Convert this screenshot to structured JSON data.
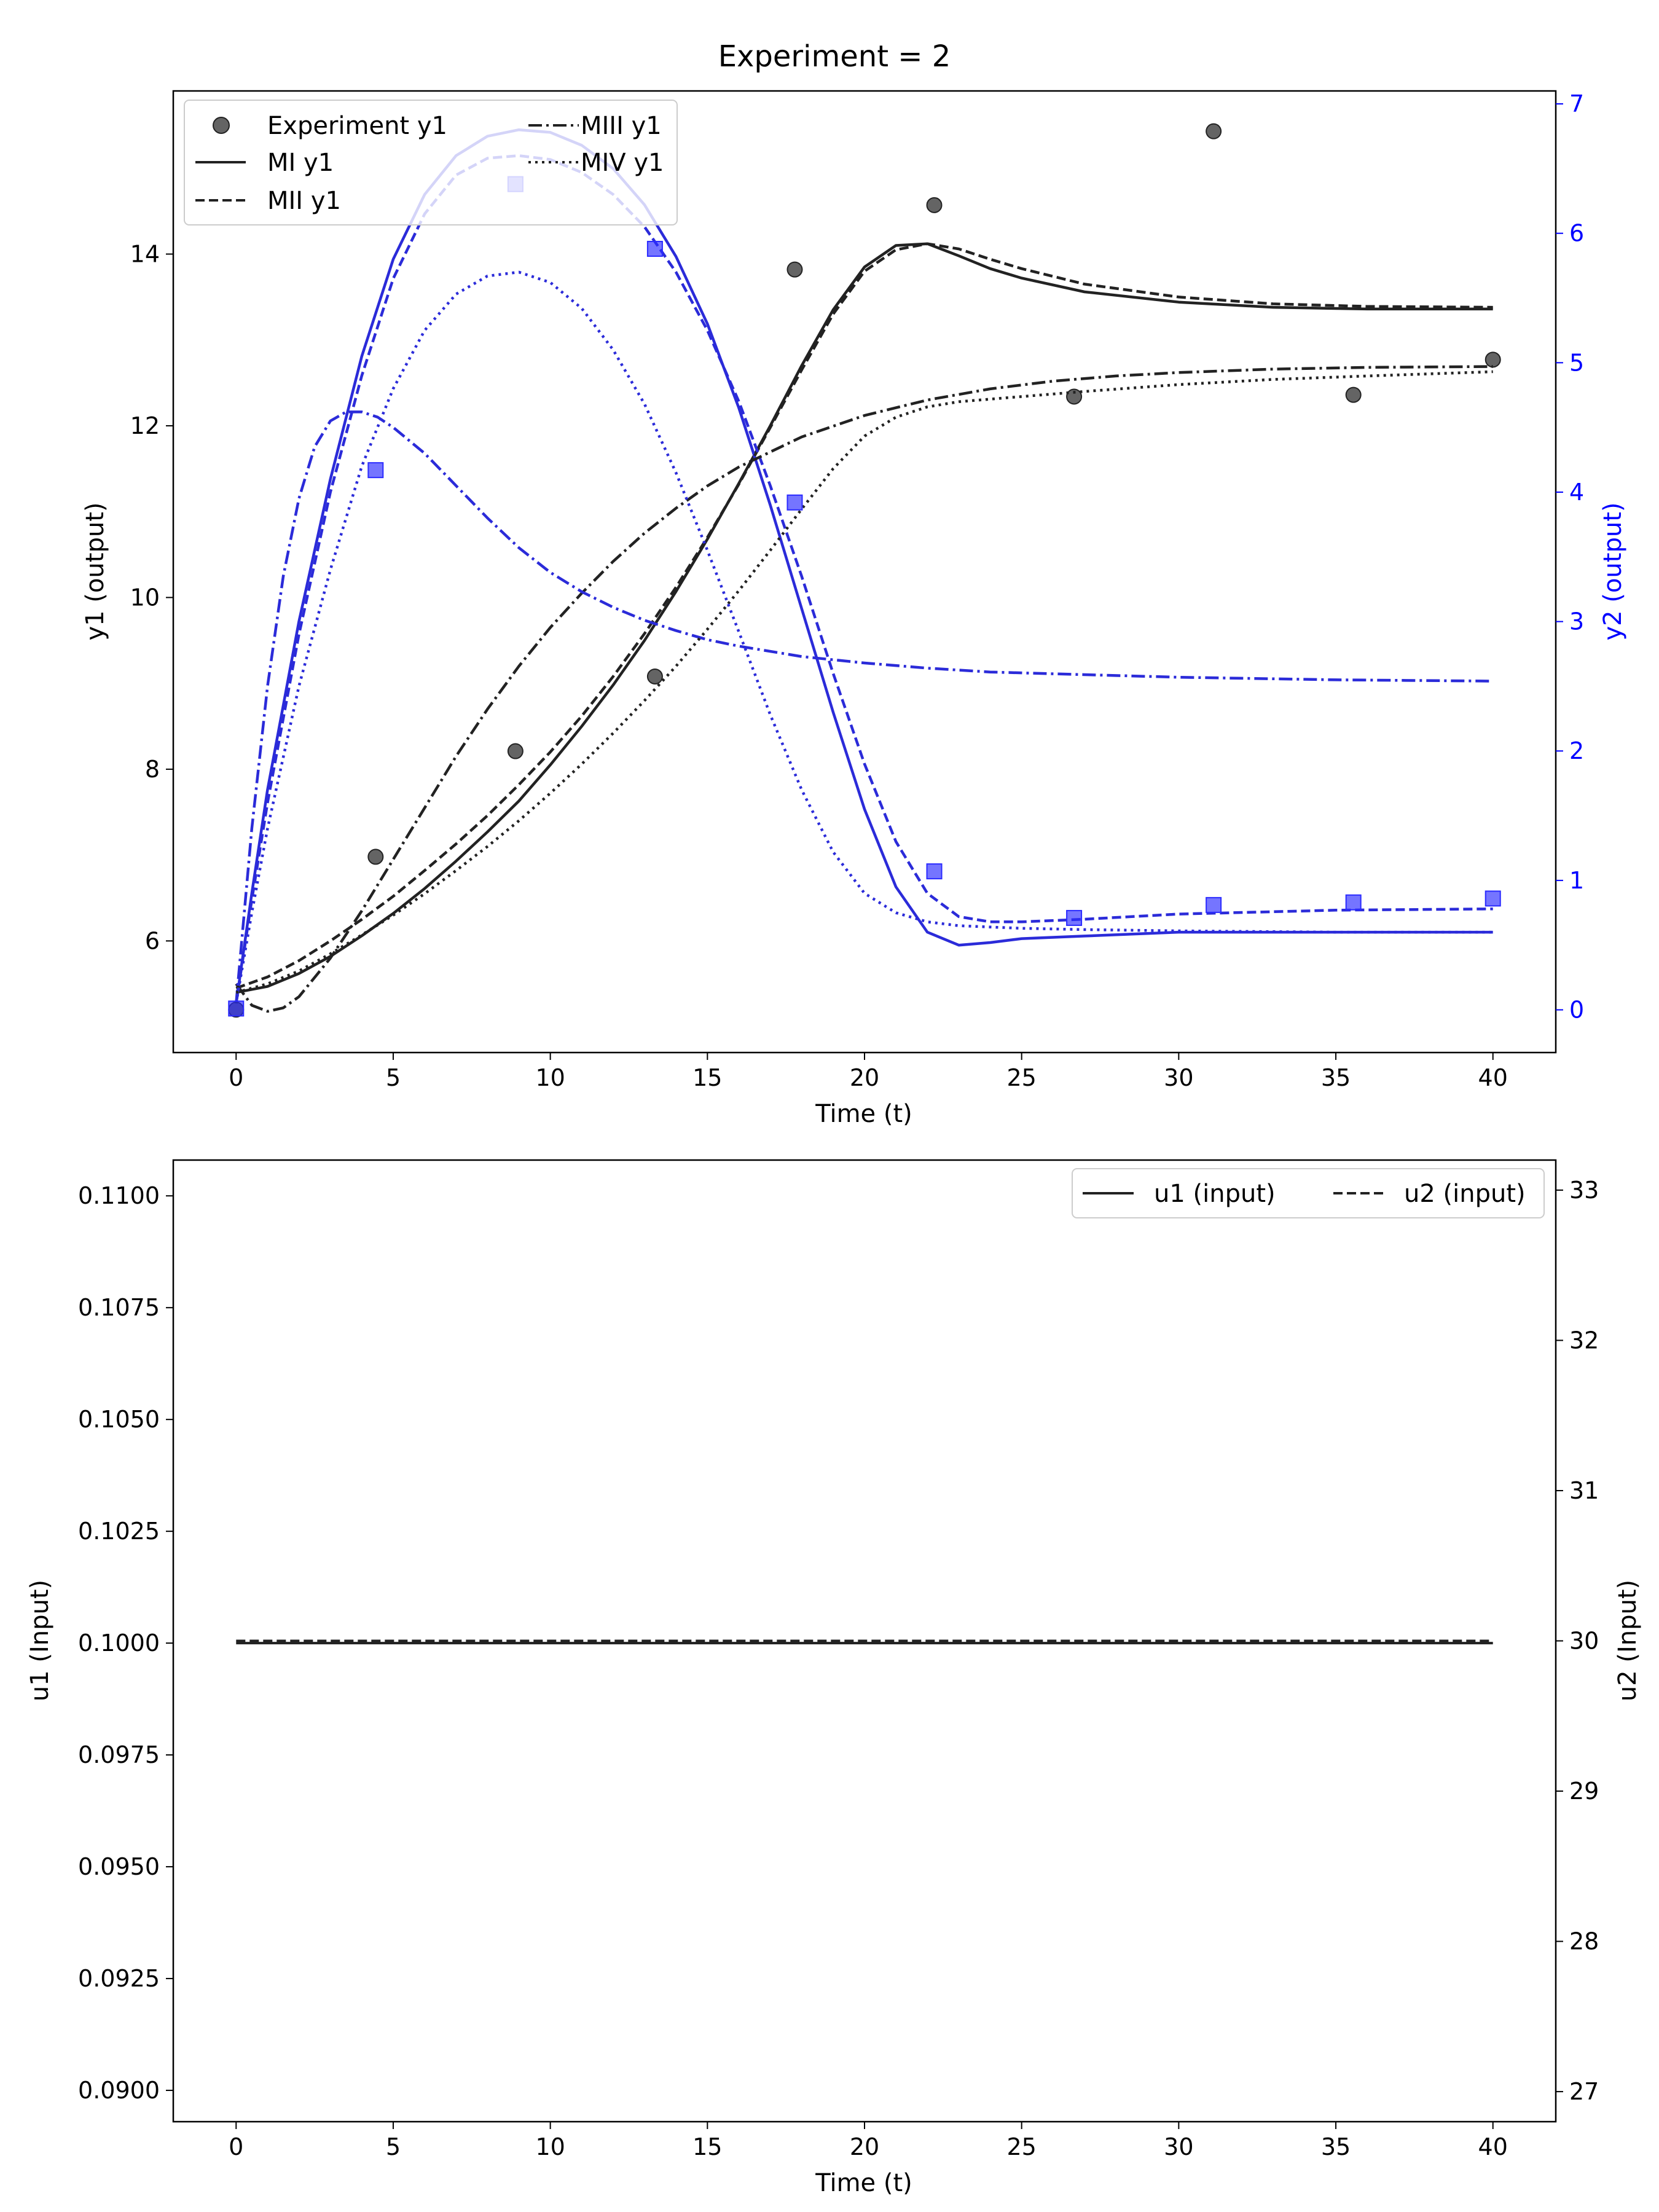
{
  "chart_data": [
    {
      "type": "line",
      "title": "Experiment = 2",
      "xlabel": "Time (t)",
      "ylabel_left": "y1 (output)",
      "ylabel_right": "y2 (output)",
      "xlim": [
        -2,
        42
      ],
      "ylim_left": [
        4.7,
        15.9
      ],
      "ylim_right": [
        -0.33,
        7.1
      ],
      "x_ticks": [
        0,
        5,
        10,
        15,
        20,
        25,
        30,
        35,
        40
      ],
      "x_tick_labels": [
        "0",
        "5",
        "10",
        "15",
        "20",
        "25",
        "30",
        "35",
        "40"
      ],
      "y_left_ticks": [
        6,
        8,
        10,
        12,
        14
      ],
      "y_left_tick_labels": [
        "6",
        "8",
        "10",
        "12",
        "14"
      ],
      "y_right_ticks": [
        0,
        1,
        2,
        3,
        4,
        5,
        6,
        7
      ],
      "y_right_tick_labels": [
        "0",
        "1",
        "2",
        "3",
        "4",
        "5",
        "6",
        "7"
      ],
      "colors": {
        "y1": "#222222",
        "y2": "#2b2bd9",
        "axis_right": "#0000ff"
      },
      "legend": {
        "placement": "upper-left",
        "columns": 2,
        "entries": [
          {
            "label": "Experiment y1",
            "style": "marker-circle"
          },
          {
            "label": "MI y1",
            "style": "solid"
          },
          {
            "label": "MII y1",
            "style": "dashed"
          },
          {
            "label": "MIII y1",
            "style": "dashdot"
          },
          {
            "label": "MIV y1",
            "style": "dotted"
          }
        ]
      },
      "experiment": {
        "x": [
          0,
          4.44,
          8.89,
          13.33,
          17.78,
          22.22,
          26.67,
          31.11,
          35.56,
          40
        ],
        "y1": [
          5.2,
          6.98,
          8.21,
          9.08,
          13.82,
          14.57,
          12.34,
          15.43,
          12.36,
          12.77
        ],
        "y2": [
          0.01,
          4.17,
          6.38,
          5.88,
          3.92,
          1.07,
          0.71,
          0.81,
          0.83,
          0.86
        ]
      },
      "models": [
        {
          "name": "MI",
          "style": "solid",
          "y1": {
            "t": [
              0,
              1,
              2,
              3,
              4,
              5,
              6,
              7,
              8,
              9,
              10,
              11,
              12,
              13,
              14,
              15,
              16,
              17,
              18,
              19,
              20,
              21,
              22,
              23,
              24,
              25,
              27,
              30,
              33,
              36,
              40
            ],
            "v": [
              5.4,
              5.47,
              5.62,
              5.82,
              6.06,
              6.32,
              6.61,
              6.93,
              7.27,
              7.63,
              8.05,
              8.5,
              8.98,
              9.5,
              10.07,
              10.68,
              11.33,
              12.0,
              12.7,
              13.35,
              13.85,
              14.1,
              14.12,
              13.98,
              13.83,
              13.72,
              13.56,
              13.44,
              13.38,
              13.36,
              13.36
            ]
          },
          "y2": {
            "t": [
              0,
              0.5,
              1,
              2,
              3,
              4,
              5,
              6,
              7,
              8,
              9,
              10,
              11,
              12,
              13,
              14,
              15,
              16,
              17,
              18,
              19,
              20,
              21,
              22,
              23,
              24,
              25,
              27,
              30,
              35,
              40
            ],
            "v": [
              0.05,
              0.9,
              1.7,
              3.0,
              4.1,
              5.05,
              5.8,
              6.3,
              6.6,
              6.75,
              6.8,
              6.78,
              6.68,
              6.5,
              6.22,
              5.82,
              5.3,
              4.65,
              3.9,
              3.1,
              2.3,
              1.55,
              0.95,
              0.6,
              0.5,
              0.52,
              0.55,
              0.57,
              0.6,
              0.6,
              0.6
            ]
          }
        },
        {
          "name": "MII",
          "style": "dashed",
          "y1": {
            "t": [
              0,
              1,
              2,
              3,
              4,
              5,
              6,
              7,
              8,
              9,
              10,
              11,
              12,
              13,
              14,
              15,
              16,
              17,
              18,
              19,
              20,
              21,
              22,
              23,
              24,
              25,
              27,
              30,
              33,
              36,
              40
            ],
            "v": [
              5.45,
              5.58,
              5.77,
              6.0,
              6.25,
              6.52,
              6.82,
              7.13,
              7.46,
              7.82,
              8.2,
              8.62,
              9.08,
              9.58,
              10.12,
              10.7,
              11.32,
              11.98,
              12.65,
              13.3,
              13.8,
              14.05,
              14.12,
              14.06,
              13.94,
              13.83,
              13.65,
              13.5,
              13.42,
              13.39,
              13.38
            ]
          },
          "y2": {
            "t": [
              0,
              0.5,
              1,
              2,
              3,
              4,
              5,
              6,
              7,
              8,
              9,
              10,
              11,
              12,
              13,
              14,
              15,
              16,
              17,
              18,
              19,
              20,
              21,
              22,
              23,
              24,
              25,
              27,
              30,
              35,
              40
            ],
            "v": [
              0.05,
              0.85,
              1.6,
              2.9,
              4.0,
              4.9,
              5.65,
              6.15,
              6.45,
              6.58,
              6.6,
              6.57,
              6.47,
              6.3,
              6.05,
              5.7,
              5.25,
              4.7,
              4.05,
              3.35,
              2.6,
              1.9,
              1.3,
              0.9,
              0.72,
              0.68,
              0.68,
              0.7,
              0.74,
              0.77,
              0.78
            ]
          }
        },
        {
          "name": "MIII",
          "style": "dashdot",
          "y1": {
            "t": [
              0,
              0.5,
              1,
              1.5,
              2,
              3,
              4,
              5,
              6,
              7,
              8,
              9,
              10,
              11,
              12,
              13,
              14,
              15,
              16,
              18,
              20,
              22,
              24,
              26,
              28,
              30,
              33,
              36,
              40
            ],
            "v": [
              5.5,
              5.25,
              5.18,
              5.22,
              5.35,
              5.8,
              6.35,
              6.95,
              7.55,
              8.15,
              8.7,
              9.2,
              9.65,
              10.05,
              10.42,
              10.75,
              11.04,
              11.3,
              11.52,
              11.87,
              12.12,
              12.3,
              12.43,
              12.52,
              12.58,
              12.62,
              12.66,
              12.68,
              12.69
            ]
          },
          "y2": {
            "t": [
              0,
              0.5,
              1,
              1.5,
              2,
              2.5,
              3,
              3.5,
              4,
              4.5,
              5,
              6,
              7,
              8,
              9,
              10,
              11,
              12,
              13,
              14,
              15,
              16,
              18,
              20,
              22,
              24,
              27,
              30,
              35,
              40
            ],
            "v": [
              0.05,
              1.4,
              2.5,
              3.35,
              3.95,
              4.35,
              4.55,
              4.62,
              4.62,
              4.58,
              4.5,
              4.3,
              4.05,
              3.8,
              3.57,
              3.38,
              3.23,
              3.11,
              3.01,
              2.93,
              2.86,
              2.81,
              2.73,
              2.68,
              2.64,
              2.61,
              2.59,
              2.57,
              2.55,
              2.54
            ]
          }
        },
        {
          "name": "MIV",
          "style": "dotted",
          "y1": {
            "t": [
              0,
              1,
              2,
              3,
              4,
              5,
              6,
              7,
              8,
              9,
              10,
              11,
              12,
              13,
              14,
              15,
              16,
              17,
              18,
              19,
              20,
              21,
              22,
              23,
              24,
              25,
              27,
              30,
              33,
              36,
              40
            ],
            "v": [
              5.4,
              5.5,
              5.65,
              5.85,
              6.07,
              6.3,
              6.55,
              6.82,
              7.1,
              7.4,
              7.72,
              8.06,
              8.42,
              8.8,
              9.2,
              9.63,
              10.08,
              10.55,
              11.03,
              11.5,
              11.88,
              12.1,
              12.22,
              12.28,
              12.31,
              12.34,
              12.4,
              12.48,
              12.54,
              12.58,
              12.63
            ]
          },
          "y2": {
            "t": [
              0,
              0.5,
              1,
              2,
              3,
              4,
              5,
              6,
              7,
              8,
              9,
              10,
              11,
              12,
              13,
              14,
              15,
              16,
              17,
              18,
              19,
              20,
              21,
              22,
              23,
              24,
              25,
              27,
              30,
              35,
              40
            ],
            "v": [
              0.05,
              0.75,
              1.4,
              2.5,
              3.4,
              4.2,
              4.8,
              5.25,
              5.53,
              5.67,
              5.7,
              5.62,
              5.42,
              5.1,
              4.68,
              4.15,
              3.55,
              2.92,
              2.28,
              1.7,
              1.22,
              0.9,
              0.75,
              0.68,
              0.65,
              0.64,
              0.63,
              0.62,
              0.61,
              0.6,
              0.6
            ]
          }
        }
      ]
    },
    {
      "type": "line",
      "title": "",
      "xlabel": "Time (t)",
      "ylabel_left": "u1 (Input)",
      "ylabel_right": "u2 (Input)",
      "xlim": [
        -2,
        42
      ],
      "ylim_left": [
        0.0893,
        0.1108
      ],
      "ylim_right": [
        26.8,
        33.2
      ],
      "x_ticks": [
        0,
        5,
        10,
        15,
        20,
        25,
        30,
        35,
        40
      ],
      "x_tick_labels": [
        "0",
        "5",
        "10",
        "15",
        "20",
        "25",
        "30",
        "35",
        "40"
      ],
      "y_left_ticks": [
        0.09,
        0.0925,
        0.095,
        0.0975,
        0.1,
        0.1025,
        0.105,
        0.1075,
        0.11
      ],
      "y_left_tick_labels": [
        "0.0900",
        "0.0925",
        "0.0950",
        "0.0975",
        "0.1000",
        "0.1025",
        "0.1050",
        "0.1075",
        "0.1100"
      ],
      "y_right_ticks": [
        27,
        28,
        29,
        30,
        31,
        32,
        33
      ],
      "y_right_tick_labels": [
        "27",
        "28",
        "29",
        "30",
        "31",
        "32",
        "33"
      ],
      "legend": {
        "placement": "upper-right",
        "columns": 2,
        "entries": [
          {
            "label": "u1 (input)",
            "style": "solid"
          },
          {
            "label": "u2 (input)",
            "style": "dashed"
          }
        ]
      },
      "series": [
        {
          "name": "u1 (input)",
          "axis": "left",
          "style": "solid",
          "x": [
            0,
            40
          ],
          "values": [
            0.1,
            0.1
          ]
        },
        {
          "name": "u2 (input)",
          "axis": "right",
          "style": "dashed",
          "x": [
            0,
            40
          ],
          "values": [
            30,
            30
          ]
        }
      ]
    }
  ]
}
